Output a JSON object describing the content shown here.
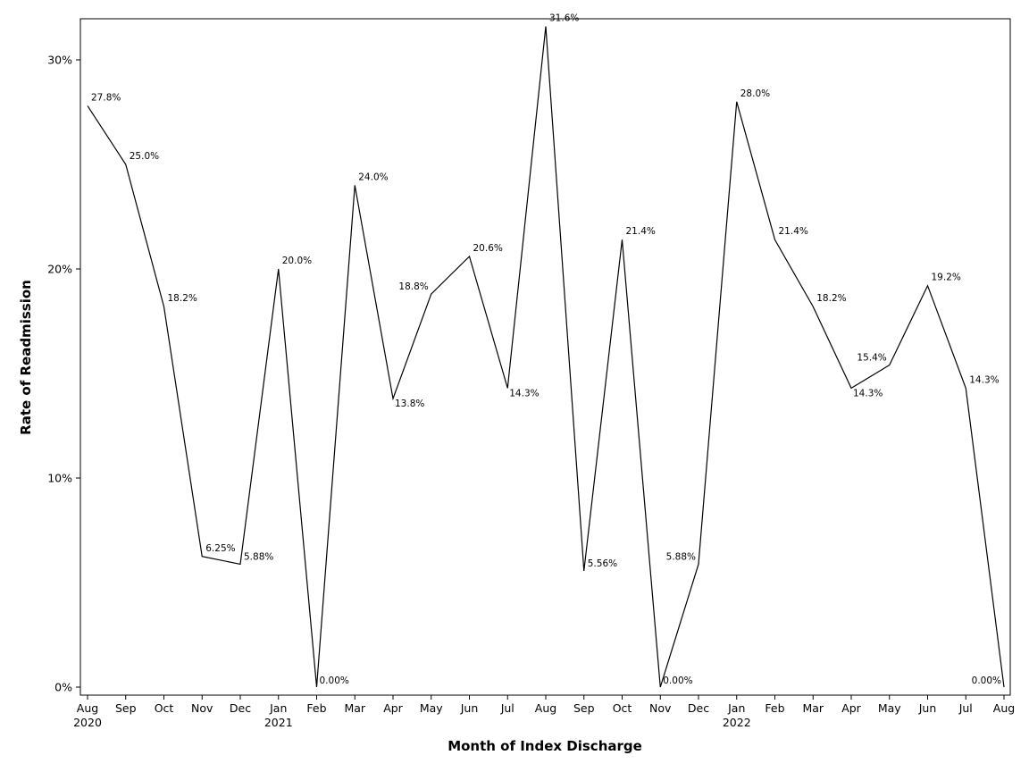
{
  "chart_data": {
    "type": "line",
    "title": "",
    "xlabel": "Month of Index Discharge",
    "ylabel": "Rate of Readmission",
    "ylim": [
      0,
      32
    ],
    "yticks": [
      0,
      10,
      20,
      30
    ],
    "ytick_labels": [
      "0%",
      "10%",
      "20%",
      "30%"
    ],
    "grid": false,
    "legend": "none",
    "line_color": "#000000",
    "categories": [
      "Aug",
      "Sep",
      "Oct",
      "Nov",
      "Dec",
      "Jan",
      "Feb",
      "Mar",
      "Apr",
      "May",
      "Jun",
      "Jul",
      "Aug",
      "Sep",
      "Oct",
      "Nov",
      "Dec",
      "Jan",
      "Feb",
      "Mar",
      "Apr",
      "May",
      "Jun",
      "Jul",
      "Aug"
    ],
    "year_labels": [
      "2020",
      "",
      "",
      "",
      "",
      "2021",
      "",
      "",
      "",
      "",
      "",
      "",
      "",
      "",
      "",
      "",
      "",
      "2022",
      "",
      "",
      "",
      "",
      "",
      "",
      ""
    ],
    "values": [
      27.8,
      25.0,
      18.2,
      6.25,
      5.88,
      20.0,
      0.0,
      24.0,
      13.8,
      18.8,
      20.6,
      14.3,
      31.6,
      5.56,
      21.4,
      0.0,
      5.88,
      28.0,
      21.4,
      18.2,
      14.3,
      15.4,
      19.2,
      14.3,
      0.0
    ],
    "data_labels": [
      "27.8%",
      "25.0%",
      "18.2%",
      "6.25%",
      "5.88%",
      "20.0%",
      "0.00%",
      "24.0%",
      "13.8%",
      "18.8%",
      "20.6%",
      "14.3%",
      "31.6%",
      "5.56%",
      "21.4%",
      "0.00%",
      "5.88%",
      "28.0%",
      "21.4%",
      "18.2%",
      "14.3%",
      "15.4%",
      "19.2%",
      "14.3%",
      "0.00%"
    ]
  }
}
